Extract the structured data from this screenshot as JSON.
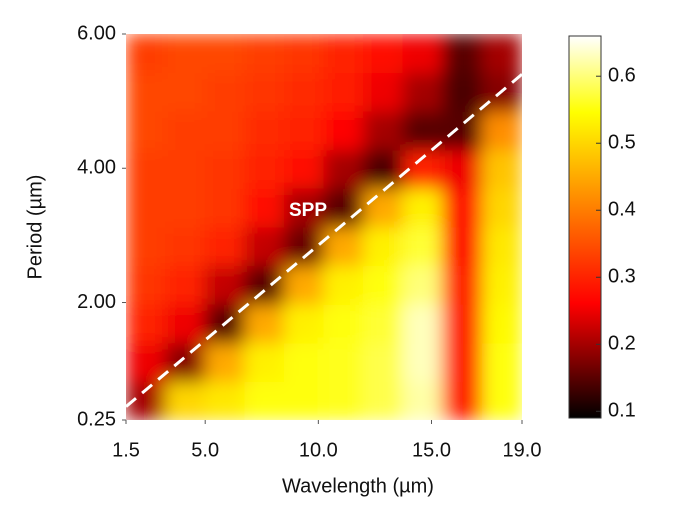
{
  "chart_data": {
    "type": "heatmap",
    "xlabel": "Wavelength (µm)",
    "ylabel": "Period (µm)",
    "annotation": "SPP",
    "xbins": [
      1.5,
      3.25,
      5.0,
      6.75,
      8.5,
      10.25,
      12.0,
      13.75,
      15.5,
      17.25,
      19.0
    ],
    "ybins": [
      0.25,
      0.825,
      1.4,
      1.975,
      2.55,
      3.125,
      3.7,
      4.275,
      4.85,
      5.425,
      6.0
    ],
    "z": [
      [
        0.2,
        0.5,
        0.52,
        0.55,
        0.55,
        0.56,
        0.58,
        0.62,
        0.3,
        0.55
      ],
      [
        0.25,
        0.18,
        0.45,
        0.53,
        0.55,
        0.56,
        0.58,
        0.63,
        0.3,
        0.55
      ],
      [
        0.3,
        0.25,
        0.15,
        0.45,
        0.53,
        0.55,
        0.57,
        0.63,
        0.3,
        0.54
      ],
      [
        0.32,
        0.3,
        0.22,
        0.15,
        0.45,
        0.53,
        0.55,
        0.6,
        0.3,
        0.53
      ],
      [
        0.33,
        0.32,
        0.3,
        0.22,
        0.16,
        0.45,
        0.53,
        0.57,
        0.28,
        0.52
      ],
      [
        0.33,
        0.33,
        0.32,
        0.28,
        0.2,
        0.15,
        0.45,
        0.53,
        0.28,
        0.5
      ],
      [
        0.33,
        0.33,
        0.32,
        0.3,
        0.27,
        0.2,
        0.14,
        0.3,
        0.25,
        0.48
      ],
      [
        0.34,
        0.33,
        0.33,
        0.31,
        0.3,
        0.26,
        0.2,
        0.15,
        0.15,
        0.42
      ],
      [
        0.34,
        0.34,
        0.33,
        0.32,
        0.31,
        0.29,
        0.25,
        0.2,
        0.14,
        0.18
      ],
      [
        0.33,
        0.34,
        0.34,
        0.33,
        0.32,
        0.3,
        0.28,
        0.25,
        0.15,
        0.2
      ]
    ],
    "spp_line": {
      "x": [
        1.5,
        19.0
      ],
      "y": [
        0.45,
        5.4
      ]
    },
    "xlim": [
      1.5,
      19.0
    ],
    "xticks": [
      1.5,
      {
        "value": 5,
        "label": "5.0"
      },
      {
        "value": 10,
        "label": "10.0"
      },
      {
        "value": 15,
        "label": "15.0"
      },
      {
        "value": 19,
        "label": "19.0"
      }
    ],
    "ylim": [
      0.25,
      6.0
    ],
    "yticks": [
      0.25,
      {
        "value": 2,
        "label": "2.00"
      },
      {
        "value": 4,
        "label": "4.00"
      },
      {
        "value": 6,
        "label": "6.00"
      }
    ],
    "colormap": "hot",
    "zlim": [
      0.09,
      0.66
    ],
    "zticks": [
      0.1,
      0.2,
      0.3,
      0.4,
      0.5,
      0.6
    ]
  }
}
